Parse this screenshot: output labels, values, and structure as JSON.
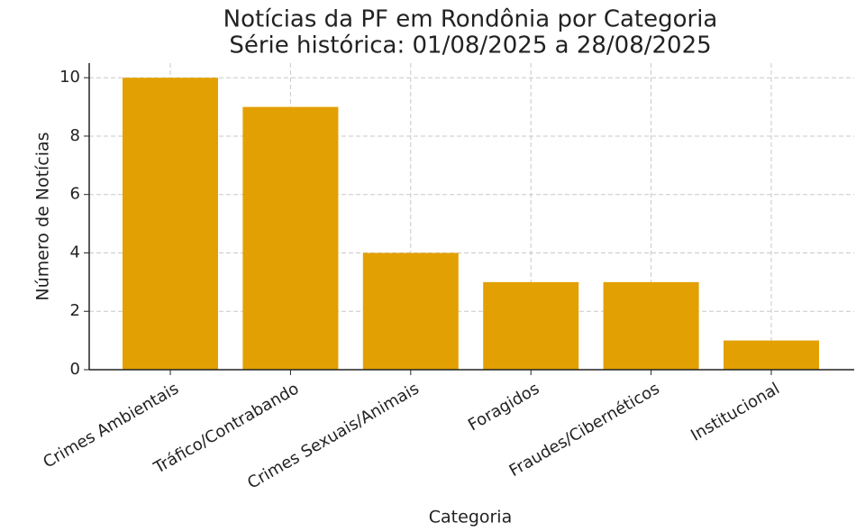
{
  "chart_data": {
    "type": "bar",
    "title": "Notícias da PF em Rondônia por Categoria",
    "subtitle": "Série histórica: 01/08/2025 a 28/08/2025",
    "x_label": "Categoria",
    "y_label": "Número de Notícias",
    "categories": [
      "Crimes Ambientais",
      "Tráfico/Contrabando",
      "Crimes Sexuais/Animais",
      "Foragidos",
      "Fraudes/Cibernéticos",
      "Institucional"
    ],
    "values": [
      10,
      9,
      4,
      3,
      3,
      1
    ],
    "color": "#e3a002",
    "ylim": [
      0,
      10.5
    ],
    "yticks": [
      0,
      2,
      4,
      6,
      8,
      10
    ],
    "grid": true
  }
}
